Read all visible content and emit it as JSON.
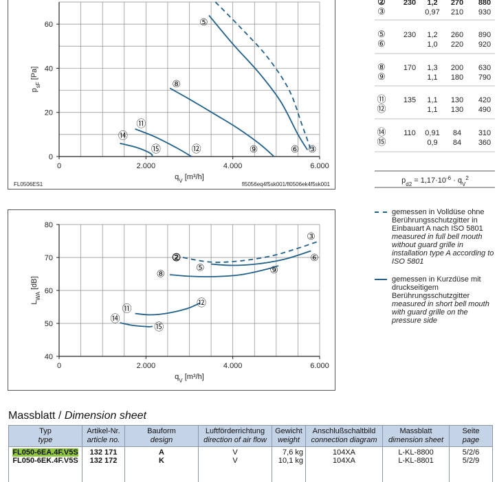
{
  "top_table": {
    "rows": [
      {
        "cols": [
          "②",
          "230",
          "1,2",
          "270",
          "880"
        ],
        "bold": true
      },
      {
        "cols": [
          "③",
          "",
          "0,97",
          "210",
          "930"
        ]
      },
      {
        "cols": [
          "⑤",
          "230",
          "1,2",
          "260",
          "890"
        ]
      },
      {
        "cols": [
          "⑥",
          "",
          "1,0",
          "220",
          "920"
        ]
      },
      {
        "cols": [
          "⑧",
          "170",
          "1,3",
          "200",
          "630"
        ]
      },
      {
        "cols": [
          "⑨",
          "",
          "1,1",
          "180",
          "790"
        ]
      },
      {
        "cols": [
          "⑪",
          "135",
          "1,1",
          "130",
          "420"
        ]
      },
      {
        "cols": [
          "⑫",
          "",
          "1,1",
          "130",
          "490"
        ]
      },
      {
        "cols": [
          "⑭",
          "110",
          "0,91",
          "84",
          "310"
        ]
      },
      {
        "cols": [
          "⑮",
          "",
          "0,9",
          "84",
          "360"
        ]
      }
    ],
    "formula": "p_d2 = 1,17·10^-6 · q_V^2",
    "formula_parts": {
      "p": "p",
      "p_sub": "d2",
      "mid": " = 1,17·10",
      "exp": "-6",
      "tail": " · q",
      "q_sub": "V",
      "q_sup": "2"
    }
  },
  "chart_data": [
    {
      "type": "line",
      "title": "",
      "xlabel": "q_V [m³/h]",
      "ylabel": "p_sF [Pa]",
      "ylabel_parts": {
        "main": "p",
        "sub": "sF",
        "unit": " [Pa]"
      },
      "xlabel_parts": {
        "main": "q",
        "sub": "V",
        "unit": " [m³/h]"
      },
      "xlim": [
        0,
        6000
      ],
      "ylim": [
        0,
        70
      ],
      "xticks": [
        0,
        2000,
        4000,
        6000
      ],
      "xtick_labels": [
        "0",
        "2.000",
        "4.000",
        "6.000"
      ],
      "yticks": [
        0,
        20,
        40,
        60
      ],
      "ytick_labels": [
        "0",
        "20",
        "40",
        "60"
      ],
      "grid": true,
      "footer_left": "FL0506ES1",
      "footer_right": "fl5056eq4f5sk001/fl0506ek4f5sk001",
      "series": [
        {
          "id": "3",
          "style": "dashed",
          "x": [
            3600,
            4200,
            4800,
            5300,
            5600,
            5800
          ],
          "y": [
            70,
            58,
            45,
            30,
            14,
            3
          ]
        },
        {
          "id": "5",
          "style": "solid",
          "x": [
            3450,
            4000,
            4600,
            5100,
            5500,
            5720
          ],
          "y": [
            64,
            51,
            38,
            25,
            10,
            3
          ]
        },
        {
          "id": "8",
          "style": "solid",
          "x": [
            2550,
            3000,
            3600,
            4100,
            4600,
            4950
          ],
          "y": [
            31,
            26,
            19,
            13,
            6,
            0
          ]
        },
        {
          "id": "11",
          "style": "solid",
          "x": [
            1750,
            2200,
            2700,
            3050
          ],
          "y": [
            12.5,
            9,
            4,
            0
          ]
        },
        {
          "id": "14",
          "style": "solid",
          "x": [
            1400,
            1800,
            2100,
            2150
          ],
          "y": [
            6,
            4,
            1.5,
            0
          ]
        }
      ],
      "markers": [
        {
          "label": "⑤",
          "x": 3330,
          "y": 61
        },
        {
          "label": "⑧",
          "x": 2700,
          "y": 33
        },
        {
          "label": "⑪",
          "x": 1890,
          "y": 15
        },
        {
          "label": "⑭",
          "x": 1470,
          "y": 9.5
        },
        {
          "label": "⑮",
          "x": 2230,
          "y": 3.5
        },
        {
          "label": "⑫",
          "x": 3160,
          "y": 3.5
        },
        {
          "label": "⑨",
          "x": 4480,
          "y": 3.5
        },
        {
          "label": "⑥",
          "x": 5430,
          "y": 3.5
        },
        {
          "label": "③",
          "x": 5830,
          "y": 3.5
        }
      ]
    },
    {
      "type": "line",
      "title": "",
      "xlabel": "q_V [m³/h]",
      "ylabel": "L_WA [dB]",
      "ylabel_parts": {
        "main": "L",
        "sub": "WA",
        "unit": " [dB]"
      },
      "xlabel_parts": {
        "main": "q",
        "sub": "V",
        "unit": " [m³/h]"
      },
      "xlim": [
        0,
        6000
      ],
      "ylim": [
        40,
        80
      ],
      "xticks": [
        0,
        2000,
        4000,
        6000
      ],
      "xtick_labels": [
        "0",
        "2.000",
        "4.000",
        "6.000"
      ],
      "yticks": [
        40,
        50,
        60,
        70,
        80
      ],
      "ytick_labels": [
        "40",
        "50",
        "60",
        "70",
        "80"
      ],
      "grid": true,
      "series": [
        {
          "id": "3",
          "style": "dashed",
          "x": [
            2850,
            3500,
            4200,
            4900,
            5500,
            5950
          ],
          "y": [
            70,
            68.6,
            69,
            70.5,
            72.8,
            74.8
          ]
        },
        {
          "id": "6",
          "style": "solid",
          "x": [
            3500,
            4000,
            4600,
            5200,
            5800
          ],
          "y": [
            68,
            67.6,
            68.1,
            69.5,
            72
          ]
        },
        {
          "id": "8",
          "style": "solid",
          "x": [
            2550,
            3000,
            3600,
            4200,
            4800,
            5050
          ],
          "y": [
            64.8,
            64.3,
            64.2,
            64.8,
            66.5,
            67.5
          ]
        },
        {
          "id": "11",
          "style": "solid",
          "x": [
            1750,
            2100,
            2500,
            2950,
            3250
          ],
          "y": [
            53,
            52.6,
            53.1,
            54.5,
            56.2
          ]
        },
        {
          "id": "14",
          "style": "solid",
          "x": [
            1400,
            1700,
            2050,
            2150
          ],
          "y": [
            50.2,
            49.4,
            49,
            49.1
          ]
        }
      ],
      "markers": [
        {
          "label": "②",
          "x": 2700,
          "y": 70,
          "bold": true
        },
        {
          "label": "③",
          "x": 5800,
          "y": 76.5
        },
        {
          "label": "⑥",
          "x": 5880,
          "y": 70
        },
        {
          "label": "⑤",
          "x": 3250,
          "y": 67
        },
        {
          "label": "⑨",
          "x": 4950,
          "y": 66.2
        },
        {
          "label": "⑧",
          "x": 2340,
          "y": 65.1
        },
        {
          "label": "⑫",
          "x": 3280,
          "y": 56.2
        },
        {
          "label": "⑪",
          "x": 1560,
          "y": 54.5
        },
        {
          "label": "⑭",
          "x": 1290,
          "y": 51.5
        },
        {
          "label": "⑮",
          "x": 2300,
          "y": 49
        }
      ]
    }
  ],
  "legend": {
    "dashed": {
      "de": "gemessen in Volldüse ohne Berührungsschutzgitter in Einbauart A nach ISO 5801",
      "en": "measured in full bell mouth without guard grille in installation type A according to ISO 5801"
    },
    "solid": {
      "de": "gemessen in Kurzdüse mit druckseitigem Berührungsschutzgitter",
      "en": "measured in short bell mouth with guard grille on the pressure side"
    }
  },
  "dimension_sheet": {
    "title_de": "Massblatt /",
    "title_en": "Dimension sheet",
    "headers": [
      {
        "de": "Typ",
        "en": "type"
      },
      {
        "de": "Artikel-Nr.",
        "en": "article no."
      },
      {
        "de": "Bauform",
        "en": "design"
      },
      {
        "de": "Luftförderrichtung",
        "en": "direction of air flow"
      },
      {
        "de": "Gewicht",
        "en": "weight"
      },
      {
        "de": "Anschlußschaltbild",
        "en": "connection diagram"
      },
      {
        "de": "Massblatt",
        "en": "dimension sheet"
      },
      {
        "de": "Seite",
        "en": "page"
      }
    ],
    "rows": [
      [
        "FL050-6EA.4F.V5S",
        "132 171",
        "A",
        "V",
        "7,6 kg",
        "104XA",
        "L-KL-8800",
        "5/2/6"
      ],
      [
        "FL050-6EK.4F.V5S",
        "132 172",
        "K",
        "V",
        "10,1 kg",
        "104XA",
        "L-KL-8801",
        "5/2/9"
      ]
    ]
  },
  "colors": {
    "curve": "#1f5f8b",
    "header_bg": "#c5d3e6",
    "highlight": "#8fc640"
  }
}
